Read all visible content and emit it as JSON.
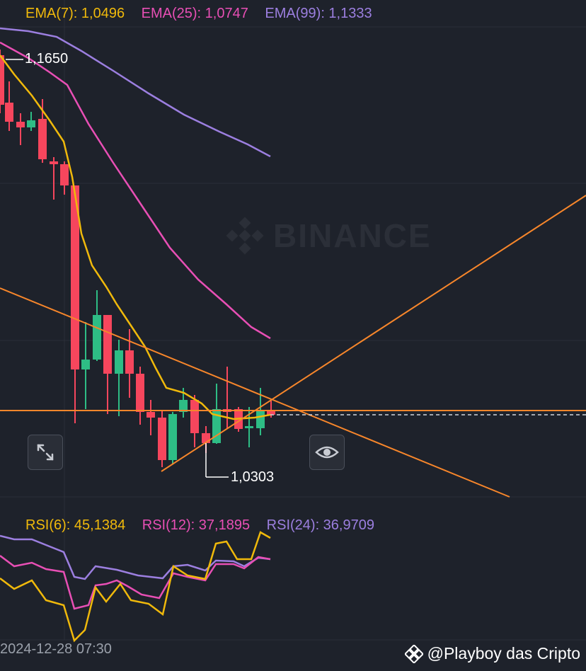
{
  "ema_legend": {
    "ema7": "EMA(7): 1,0496",
    "ema25": "EMA(25): 1,0747",
    "ema99": "EMA(99): 1,1333"
  },
  "rsi_legend": {
    "rsi6": "RSI(6): 45,1384",
    "rsi12": "RSI(12): 37,1895",
    "rsi24": "RSI(24): 36,9709"
  },
  "price_labels": {
    "high": "1,1650",
    "low": "1,0303"
  },
  "watermark": "BINANCE",
  "time_axis": {
    "label": "2024-12-28 07:30"
  },
  "credit": "@Playboy das Cripto",
  "colors": {
    "background": "#1e222b",
    "up": "#2ebd85",
    "down": "#f6465d",
    "ema7": "#f0b90b",
    "ema25": "#e84fb5",
    "ema99": "#9c7fe0",
    "trendline": "#f7862b"
  },
  "icons": {
    "expand": "expand-arrows-icon",
    "eye": "eye-icon",
    "brand": "binance-logo-icon"
  }
}
